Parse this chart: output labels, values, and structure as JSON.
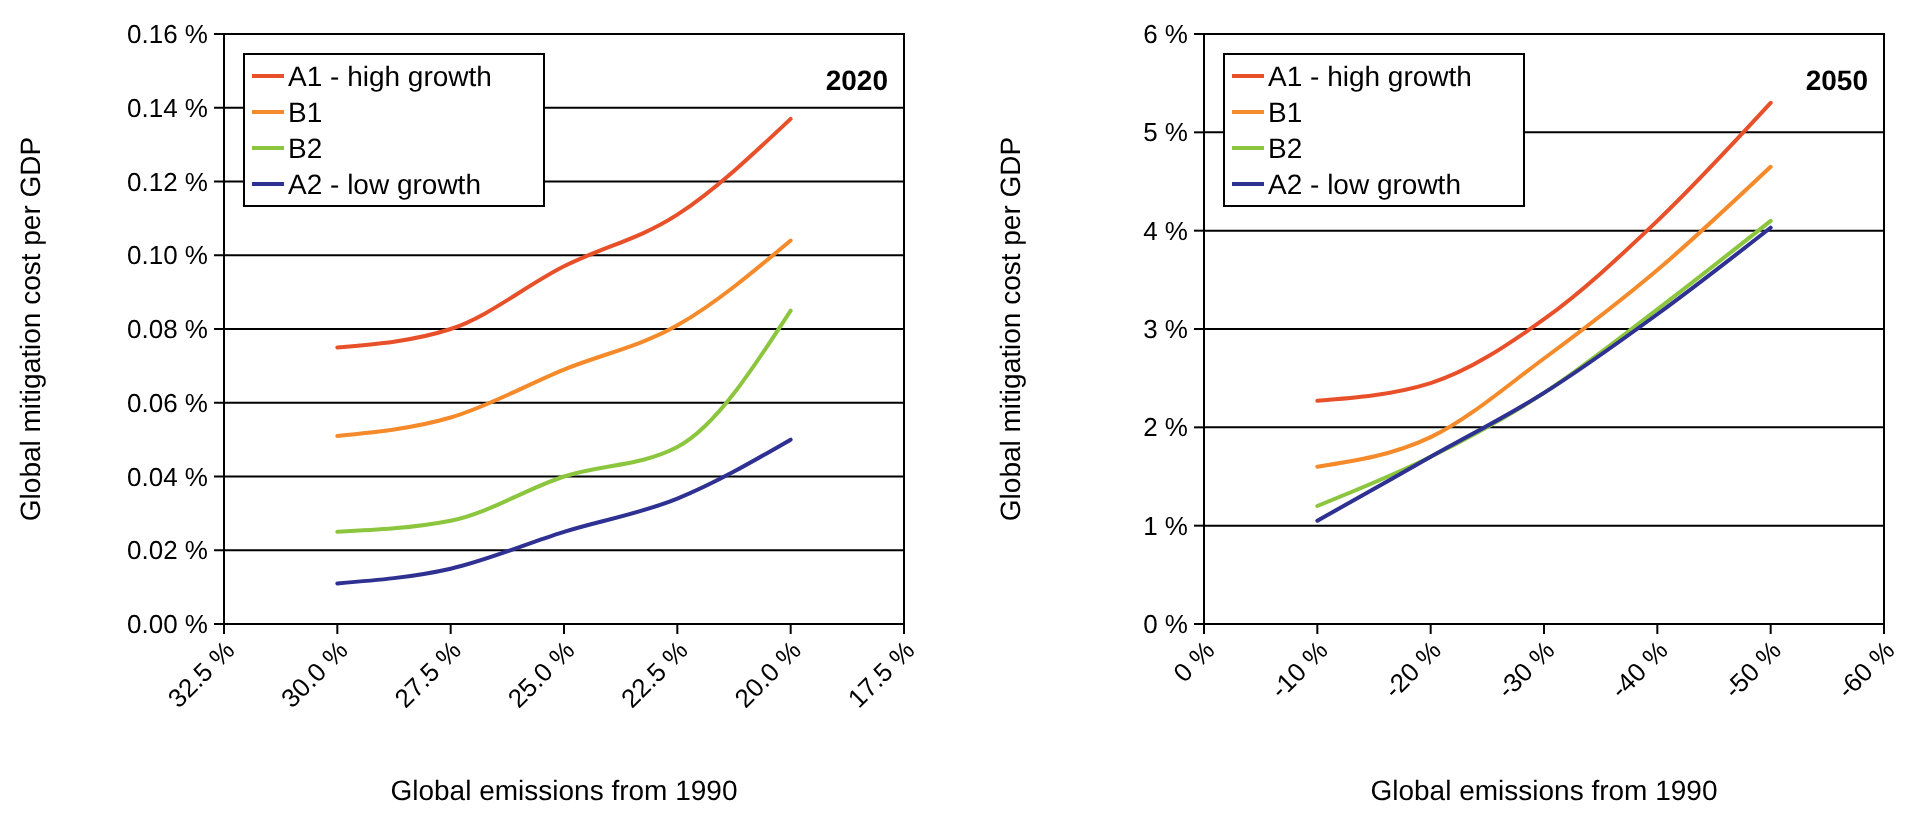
{
  "chart_data": [
    {
      "type": "line",
      "title": "2020",
      "xlabel": "Global emissions from 1990",
      "ylabel": "Global mitigation cost per GDP",
      "x": [
        30,
        27.5,
        25,
        22.5,
        20
      ],
      "xlim": [
        32.5,
        17.5
      ],
      "xticks": [
        {
          "value": 32.5,
          "label": "32.5 %"
        },
        {
          "value": 30,
          "label": "30.0 %"
        },
        {
          "value": 27.5,
          "label": "27.5 %"
        },
        {
          "value": 25,
          "label": "25.0 %"
        },
        {
          "value": 22.5,
          "label": "22.5 %"
        },
        {
          "value": 20,
          "label": "20.0 %"
        },
        {
          "value": 17.5,
          "label": "17.5 %"
        }
      ],
      "ylim": [
        0,
        0.16
      ],
      "yticks": [
        {
          "value": 0,
          "label": "0.00 %"
        },
        {
          "value": 0.02,
          "label": "0.02 %"
        },
        {
          "value": 0.04,
          "label": "0.04 %"
        },
        {
          "value": 0.06,
          "label": "0.06 %"
        },
        {
          "value": 0.08,
          "label": "0.08 %"
        },
        {
          "value": 0.1,
          "label": "0.10 %"
        },
        {
          "value": 0.12,
          "label": "0.12 %"
        },
        {
          "value": 0.14,
          "label": "0.14 %"
        },
        {
          "value": 0.16,
          "label": "0.16 %"
        }
      ],
      "grid": "y",
      "legend": "top left",
      "series": [
        {
          "name": "A1 - high growth",
          "color": "#e8502a",
          "values": [
            0.075,
            0.08,
            0.097,
            0.111,
            0.137
          ]
        },
        {
          "name": "B1",
          "color": "#f58a2a",
          "values": [
            0.051,
            0.056,
            0.069,
            0.081,
            0.104
          ]
        },
        {
          "name": "B2",
          "color": "#8cc63e",
          "values": [
            0.025,
            0.028,
            0.04,
            0.048,
            0.085
          ]
        },
        {
          "name": "A2 - low growth",
          "color": "#2e3192",
          "values": [
            0.011,
            0.015,
            0.025,
            0.034,
            0.05
          ]
        }
      ]
    },
    {
      "type": "line",
      "title": "2050",
      "xlabel": "Global emissions from 1990",
      "ylabel": "Global mitigation cost per GDP",
      "x": [
        -10,
        -20,
        -30,
        -40,
        -50
      ],
      "xlim": [
        0,
        -60
      ],
      "xticks": [
        {
          "value": 0,
          "label": "0 %"
        },
        {
          "value": -10,
          "label": "-10 %"
        },
        {
          "value": -20,
          "label": "-20 %"
        },
        {
          "value": -30,
          "label": "-30 %"
        },
        {
          "value": -40,
          "label": "-40 %"
        },
        {
          "value": -50,
          "label": "-50 %"
        },
        {
          "value": -60,
          "label": "-60 %"
        }
      ],
      "ylim": [
        0,
        6
      ],
      "yticks": [
        {
          "value": 0,
          "label": "0 %"
        },
        {
          "value": 1,
          "label": "1 %"
        },
        {
          "value": 2,
          "label": "2 %"
        },
        {
          "value": 3,
          "label": "3 %"
        },
        {
          "value": 4,
          "label": "4 %"
        },
        {
          "value": 5,
          "label": "5 %"
        },
        {
          "value": 6,
          "label": "6 %"
        }
      ],
      "grid": "y",
      "legend": "top left",
      "series": [
        {
          "name": "A1 - high growth",
          "color": "#e8502a",
          "values": [
            2.27,
            2.45,
            3.1,
            4.1,
            5.3
          ]
        },
        {
          "name": "B1",
          "color": "#f58a2a",
          "values": [
            1.6,
            1.9,
            2.7,
            3.6,
            4.65
          ]
        },
        {
          "name": "B2",
          "color": "#8cc63e",
          "values": [
            1.2,
            1.7,
            2.35,
            3.2,
            4.1
          ]
        },
        {
          "name": "A2 - low growth",
          "color": "#2e3192",
          "values": [
            1.05,
            1.7,
            2.35,
            3.15,
            4.03
          ]
        }
      ]
    }
  ]
}
